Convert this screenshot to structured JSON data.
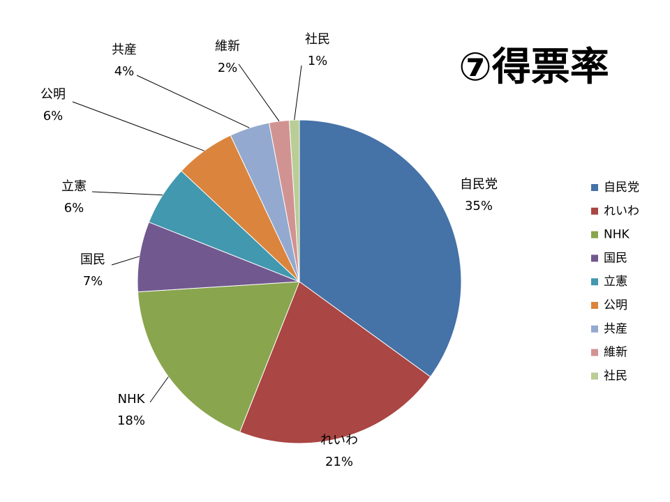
{
  "chart_data": {
    "type": "pie",
    "title": "⑦得票率",
    "categories": [
      "自民党",
      "れいわ",
      "NHK",
      "国民",
      "立憲",
      "公明",
      "共産",
      "維新",
      "社民"
    ],
    "values": [
      35,
      21,
      18,
      7,
      6,
      6,
      4,
      2,
      1
    ],
    "value_labels": [
      "35%",
      "21%",
      "18%",
      "7%",
      "6%",
      "6%",
      "4%",
      "2%",
      "1%"
    ],
    "colors": [
      "#4572a7",
      "#aa4643",
      "#89a54e",
      "#71588f",
      "#4198af",
      "#db843d",
      "#93a9cf",
      "#d19392",
      "#b9cd96"
    ],
    "legend": "right"
  }
}
